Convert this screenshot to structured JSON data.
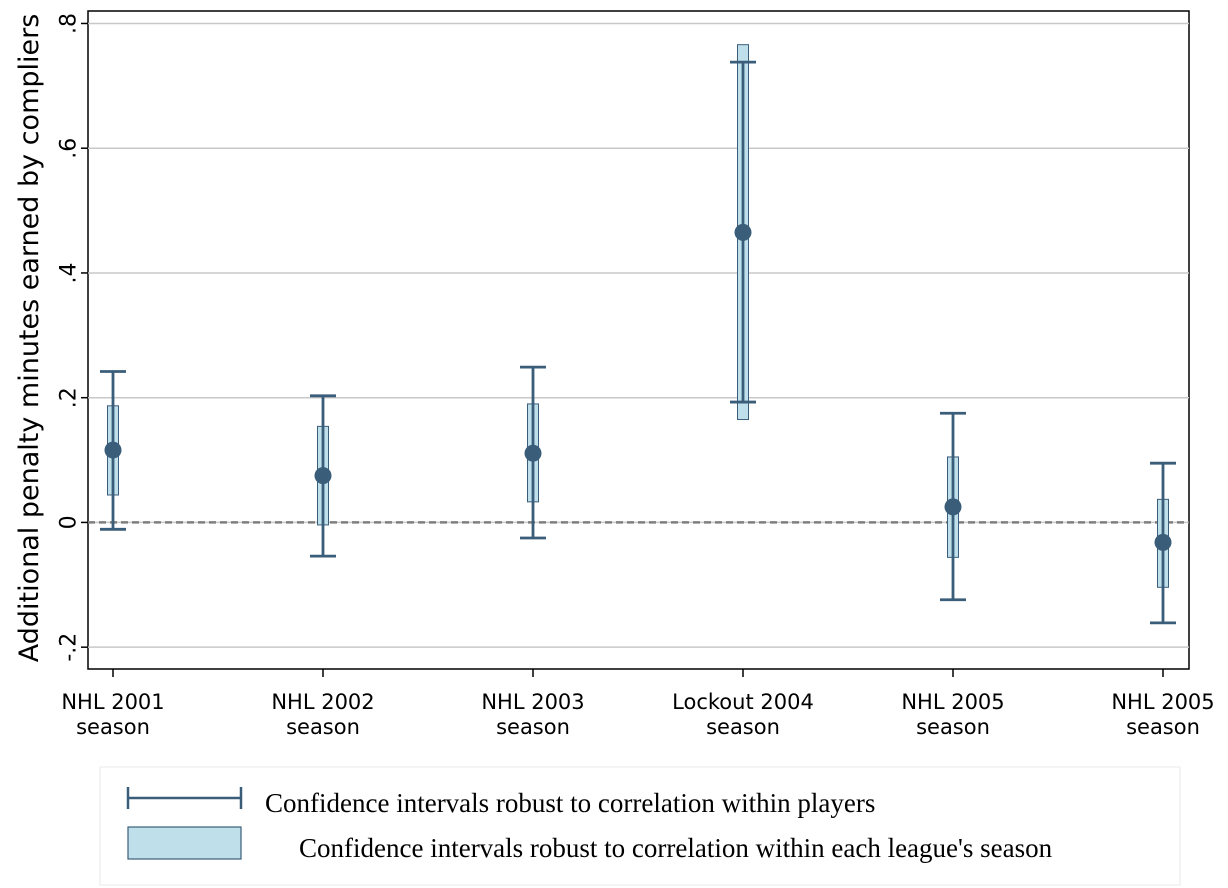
{
  "chart_data": {
    "type": "scatter",
    "ylabel": "Additional penalty minutes earned by compliers",
    "ylim": [
      -0.235,
      0.82
    ],
    "yticks": [
      {
        "value": -0.2,
        "label": "-.2"
      },
      {
        "value": 0,
        "label": "0"
      },
      {
        "value": 0.2,
        "label": ".2"
      },
      {
        "value": 0.4,
        "label": ".4"
      },
      {
        "value": 0.6,
        "label": ".6"
      },
      {
        "value": 0.8,
        "label": ".8"
      }
    ],
    "grid": true,
    "reference_line": 0,
    "categories": [
      {
        "line1": "NHL 2001",
        "line2": "season"
      },
      {
        "line1": "NHL 2002",
        "line2": "season"
      },
      {
        "line1": "NHL 2003",
        "line2": "season"
      },
      {
        "line1": "Lockout 2004",
        "line2": "season"
      },
      {
        "line1": "NHL 2005",
        "line2": "season"
      },
      {
        "line1": "NHL 2005",
        "line2": "season"
      }
    ],
    "estimates": [
      0.116,
      0.075,
      0.111,
      0.465,
      0.025,
      -0.032
    ],
    "ci_players_low": [
      -0.011,
      -0.054,
      -0.025,
      0.193,
      -0.124,
      -0.161
    ],
    "ci_players_high": [
      0.242,
      0.203,
      0.249,
      0.738,
      0.175,
      0.095
    ],
    "ci_season_low": [
      0.044,
      -0.004,
      0.033,
      0.165,
      -0.056,
      -0.104
    ],
    "ci_season_high": [
      0.187,
      0.154,
      0.19,
      0.766,
      0.105,
      0.037
    ],
    "legend": [
      {
        "kind": "capped-line",
        "label": "Confidence intervals robust to correlation within players"
      },
      {
        "kind": "box",
        "label": "Confidence intervals robust to correlation within each league's season"
      }
    ],
    "legend_position": "bottom",
    "colors": {
      "line": "#3a5d7a",
      "box_fill": "#bfe0ea",
      "box_stroke": "#3a5d7a",
      "marker": "#3a5d7a",
      "grid": "#c8c8c8",
      "zero_line": "#7f7f7f"
    }
  }
}
